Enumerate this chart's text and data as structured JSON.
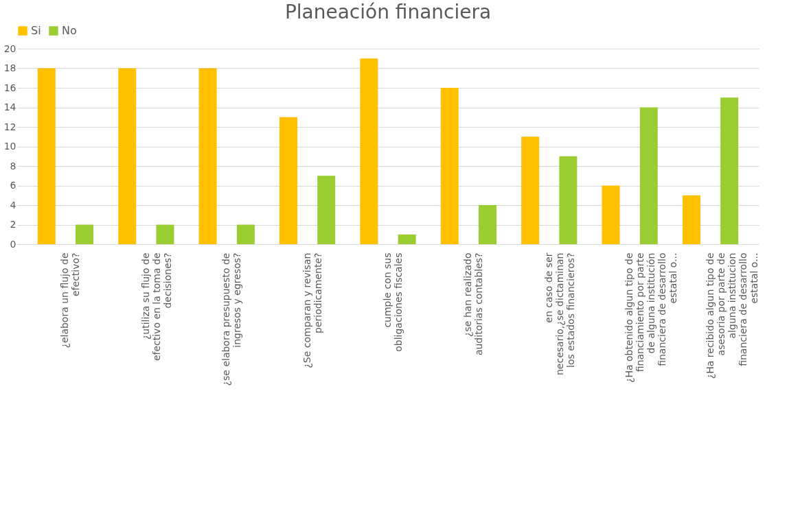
{
  "chart_data": {
    "type": "bar",
    "title": "Planeación financiera",
    "categories": [
      "¿elabora un flujo de efectivo?",
      "¿utiliza su flujo de efectivo en la toma de decisiones?",
      "¿se elabora presupuesto de ingresos y egresos?",
      "¿Se comparan y revisan periodicamente?",
      "cumple con sus obligaciones fiscales",
      "¿se han realizado auditorias contables?",
      "en caso de ser necesario,¿se dictaminan los estados financieros?",
      "¿Ha obtenido algun tipo de financiamiento por parte de alguna institución financiera de desarrollo estatal o...",
      "¿Ha recibido algun tipo de asesoria por parte de alguna institucion financiera de desarrollo estatal o..."
    ],
    "series": [
      {
        "name": "Si",
        "color": "#ffc000",
        "values": [
          18,
          18,
          18,
          13,
          19,
          16,
          11,
          6,
          5
        ]
      },
      {
        "name": "No",
        "color": "#9acd32",
        "values": [
          2,
          2,
          2,
          7,
          1,
          4,
          9,
          14,
          15
        ]
      }
    ],
    "ylim": [
      0,
      20
    ],
    "yticks": [
      0,
      2,
      4,
      6,
      8,
      10,
      12,
      14,
      16,
      18,
      20
    ],
    "grid": "y",
    "legend": "top"
  }
}
